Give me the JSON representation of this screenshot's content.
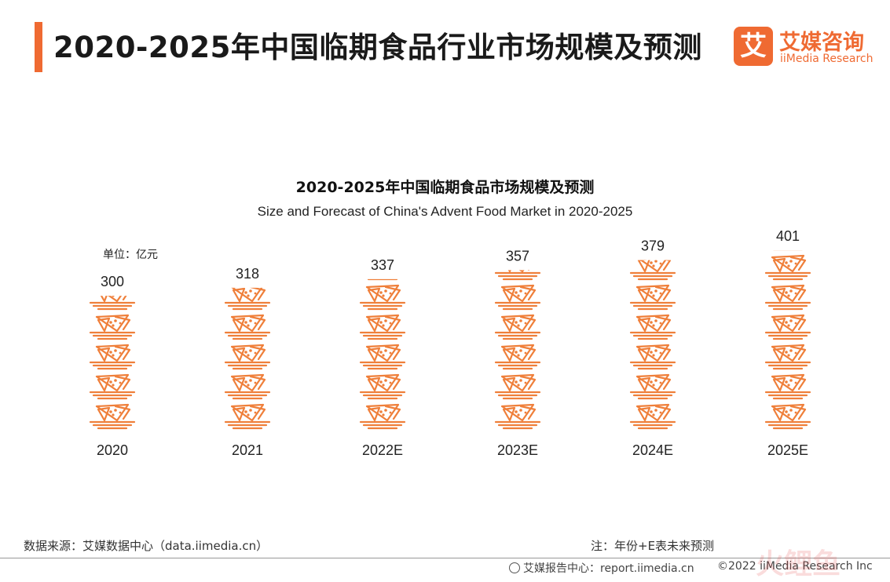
{
  "header": {
    "title": "2020-2025年中国临期食品行业市场规模及预测",
    "logo_cn": "艾媒咨询",
    "logo_en": "iiMedia Research",
    "logo_mark": "艾"
  },
  "chart_data": {
    "type": "bar",
    "title": "2020-2025年中国临期食品市场规模及预测",
    "subtitle": "Size and Forecast of China's Advent Food Market in 2020-2025",
    "unit_label": "单位：亿元",
    "categories": [
      "2020",
      "2021",
      "2022E",
      "2023E",
      "2024E",
      "2025E"
    ],
    "values": [
      300,
      318,
      337,
      357,
      379,
      401
    ],
    "ylim": [
      0,
      401
    ],
    "bar_style": "pictogram-stacked-food-plates",
    "colors": {
      "bar": "#ef7f3a",
      "accent": "#ef6a32"
    }
  },
  "footer": {
    "source": "数据来源：艾媒数据中心（data.iimedia.cn）",
    "note": "注：年份+E表未来预测",
    "report": "艾媒报告中心：report.iimedia.cn",
    "copyright": "©2022  iiMedia Research  Inc",
    "watermark": "火鲤鱼"
  }
}
